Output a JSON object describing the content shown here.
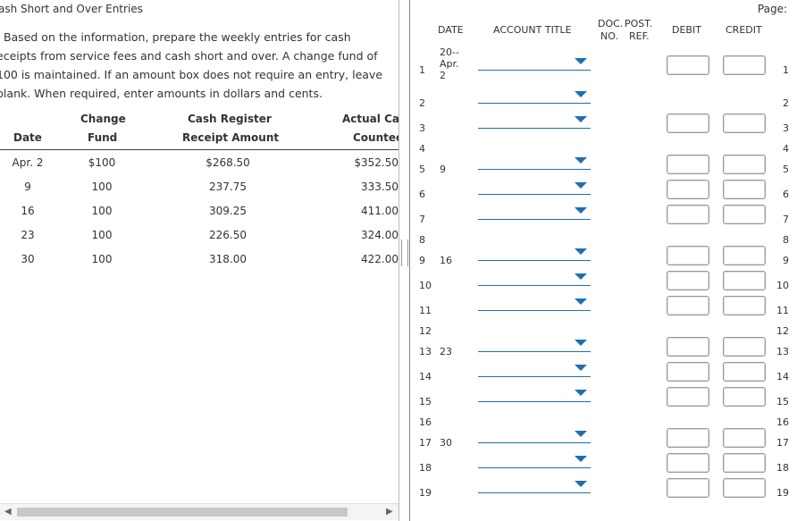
{
  "left": {
    "title": "ash Short and Over Entries",
    "instructions": [
      ". Based on the information, prepare the weekly entries for cash",
      "eceipts from service fees and cash short and over. A change fund of",
      "100 is maintained. If an amount box does not require an entry, leave",
      " blank. When required, enter amounts in dollars and cents."
    ],
    "headers": {
      "date": "Date",
      "change_1": "Change",
      "change_2": "Fund",
      "register_1": "Cash Register",
      "register_2": "Receipt Amount",
      "actual_1": "Actual Ca",
      "actual_2": "Countec"
    },
    "rows": [
      {
        "date": "Apr. 2",
        "fund": "$100",
        "register": "$268.50",
        "actual": "$352.50"
      },
      {
        "date": "9",
        "fund": "100",
        "register": "237.75",
        "actual": "333.50"
      },
      {
        "date": "16",
        "fund": "100",
        "register": "309.25",
        "actual": "411.00"
      },
      {
        "date": "23",
        "fund": "100",
        "register": "226.50",
        "actual": "324.00"
      },
      {
        "date": "30",
        "fund": "100",
        "register": "318.00",
        "actual": "422.00"
      }
    ]
  },
  "journal": {
    "page_label": "Page:",
    "headers": {
      "date": "DATE",
      "account": "ACCOUNT TITLE",
      "doc_1": "DOC.",
      "doc_2": "NO.",
      "post_1": "POST.",
      "post_2": "REF.",
      "debit": "DEBIT",
      "credit": "CREDIT"
    },
    "year": "20--",
    "lines": [
      {
        "n": "1",
        "date": "Apr.\n2"
      },
      {
        "n": "2",
        "date": ""
      },
      {
        "n": "3",
        "date": ""
      },
      {
        "n": "4",
        "date": ""
      },
      {
        "n": "5",
        "date": "9"
      },
      {
        "n": "6",
        "date": ""
      },
      {
        "n": "7",
        "date": ""
      },
      {
        "n": "8",
        "date": ""
      },
      {
        "n": "9",
        "date": "16"
      },
      {
        "n": "10",
        "date": ""
      },
      {
        "n": "11",
        "date": ""
      },
      {
        "n": "12",
        "date": ""
      },
      {
        "n": "13",
        "date": "23"
      },
      {
        "n": "14",
        "date": ""
      },
      {
        "n": "15",
        "date": ""
      },
      {
        "n": "16",
        "date": ""
      },
      {
        "n": "17",
        "date": "30"
      },
      {
        "n": "18",
        "date": ""
      },
      {
        "n": "19",
        "date": ""
      }
    ]
  },
  "colors": {
    "accent": "#1f6fae"
  }
}
